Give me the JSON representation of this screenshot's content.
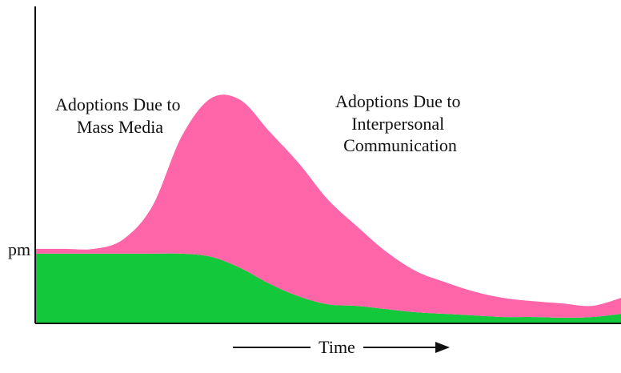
{
  "chart_data": {
    "type": "area",
    "title": "",
    "xlabel": "Time",
    "ylabel": "",
    "ytick_label": "pm",
    "xlim": [
      0,
      100
    ],
    "ylim": [
      0,
      100
    ],
    "x": [
      0,
      5,
      10,
      15,
      20,
      25,
      30,
      35,
      40,
      45,
      50,
      55,
      60,
      65,
      70,
      75,
      80,
      85,
      90,
      95,
      100
    ],
    "series": [
      {
        "name": "Adoptions Due to Mass Media",
        "color": "#14c83c",
        "values": [
          22.0,
          22.0,
          22.0,
          22.0,
          22.0,
          22.0,
          21.0,
          17.5,
          12.5,
          8.5,
          6.0,
          5.5,
          4.5,
          3.5,
          3.0,
          2.5,
          2.0,
          2.0,
          1.8,
          2.0,
          3.0
        ]
      },
      {
        "name": "Adoptions Due to Interpersonal Communication",
        "color": "#ff66aa",
        "values": [
          1.5,
          1.5,
          1.5,
          4.5,
          15.0,
          37.0,
          50.0,
          53.0,
          48.0,
          42.0,
          33.0,
          25.0,
          18.0,
          13.0,
          10.0,
          7.5,
          6.0,
          5.0,
          4.5,
          3.5,
          5.0
        ]
      }
    ],
    "annotations": [
      {
        "lines": [
          "Adoptions Due to",
          "Mass Media"
        ]
      },
      {
        "lines": [
          "Adoptions Due to",
          "Interpersonal",
          "Communication"
        ]
      }
    ]
  }
}
